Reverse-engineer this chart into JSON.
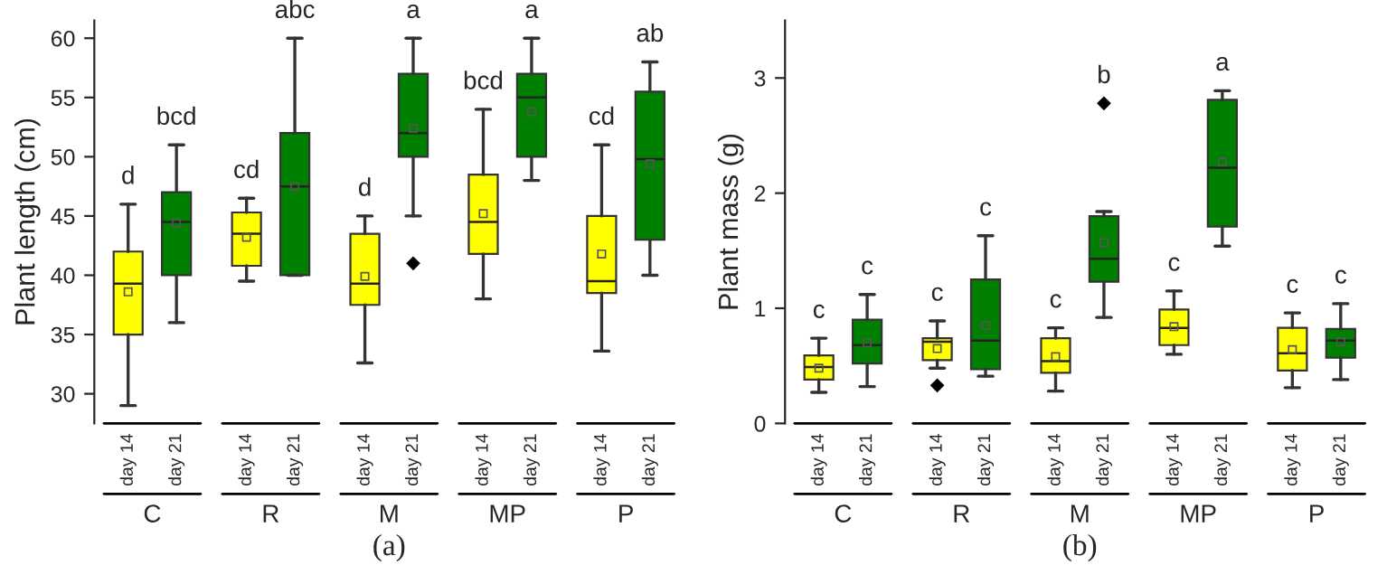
{
  "chart_data": [
    {
      "type": "box",
      "ylabel": "Plant length (cm)",
      "categories": [
        "day 14",
        "day 21",
        "day 14",
        "day 21",
        "day 14",
        "day 21",
        "day 14",
        "day 21",
        "day 14",
        "day 21"
      ],
      "colors": [
        "#ffff00",
        "#008000",
        "#ffff00",
        "#008000",
        "#ffff00",
        "#008000",
        "#ffff00",
        "#008000",
        "#ffff00",
        "#008000"
      ],
      "boxes": [
        {
          "low": 29.0,
          "q1": 35.0,
          "median": 39.3,
          "q3": 42.0,
          "high": 46.0,
          "mean": 38.6
        },
        {
          "low": 36.0,
          "q1": 40.0,
          "median": 44.5,
          "q3": 47.0,
          "high": 51.0,
          "mean": 44.4
        },
        {
          "low": 39.5,
          "q1": 40.8,
          "median": 43.5,
          "q3": 45.3,
          "high": 46.5,
          "mean": 43.2
        },
        {
          "low": 40.0,
          "q1": 40.0,
          "median": 47.5,
          "q3": 52.0,
          "high": 60.0,
          "mean": 47.5
        },
        {
          "low": 32.6,
          "q1": 37.5,
          "median": 39.3,
          "q3": 43.5,
          "high": 45.0,
          "mean": 39.9
        },
        {
          "low": 45.0,
          "q1": 50.0,
          "median": 52.0,
          "q3": 57.0,
          "high": 60.0,
          "mean": 52.4,
          "outliers": [
            41.0
          ]
        },
        {
          "low": 38.0,
          "q1": 41.8,
          "median": 44.5,
          "q3": 48.5,
          "high": 54.0,
          "mean": 45.2
        },
        {
          "low": 48.0,
          "q1": 50.0,
          "median": 55.0,
          "q3": 57.0,
          "high": 60.0,
          "mean": 53.8
        },
        {
          "low": 33.6,
          "q1": 38.5,
          "median": 39.5,
          "q3": 45.0,
          "high": 51.0,
          "mean": 41.8
        },
        {
          "low": 40.0,
          "q1": 43.0,
          "median": 49.8,
          "q3": 55.5,
          "high": 58.0,
          "mean": 49.4
        }
      ],
      "ylim": [
        27.5,
        61.5
      ],
      "yticks": [
        30,
        35,
        40,
        45,
        50,
        55,
        60
      ],
      "annotations": [
        "d",
        "bcd",
        "cd",
        "abc",
        "d",
        "a",
        "bcd",
        "a",
        "cd",
        "ab",
        "C",
        "R",
        "M",
        "MP",
        "P",
        "(a)"
      ]
    },
    {
      "type": "box",
      "ylabel": "Plant mass (g)",
      "categories": [
        "day 14",
        "day 21",
        "day 14",
        "day 21",
        "day 14",
        "day 21",
        "day 14",
        "day 21",
        "day 14",
        "day 21"
      ],
      "colors": [
        "#ffff00",
        "#008000",
        "#ffff00",
        "#008000",
        "#ffff00",
        "#008000",
        "#ffff00",
        "#008000",
        "#ffff00",
        "#008000"
      ],
      "boxes": [
        {
          "low": 0.27,
          "q1": 0.38,
          "median": 0.49,
          "q3": 0.59,
          "high": 0.74,
          "mean": 0.48
        },
        {
          "low": 0.32,
          "q1": 0.52,
          "median": 0.68,
          "q3": 0.9,
          "high": 1.12,
          "mean": 0.7
        },
        {
          "low": 0.48,
          "q1": 0.55,
          "median": 0.71,
          "q3": 0.74,
          "high": 0.89,
          "mean": 0.65,
          "outliers": [
            0.33
          ]
        },
        {
          "low": 0.41,
          "q1": 0.47,
          "median": 0.72,
          "q3": 1.25,
          "high": 1.63,
          "mean": 0.85
        },
        {
          "low": 0.28,
          "q1": 0.44,
          "median": 0.54,
          "q3": 0.74,
          "high": 0.83,
          "mean": 0.58
        },
        {
          "low": 0.92,
          "q1": 1.23,
          "median": 1.43,
          "q3": 1.8,
          "high": 1.84,
          "mean": 1.57,
          "outliers": [
            2.78
          ]
        },
        {
          "low": 0.6,
          "q1": 0.68,
          "median": 0.83,
          "q3": 0.99,
          "high": 1.15,
          "mean": 0.84
        },
        {
          "low": 1.54,
          "q1": 1.71,
          "median": 2.22,
          "q3": 2.81,
          "high": 2.89,
          "mean": 2.27
        },
        {
          "low": 0.31,
          "q1": 0.46,
          "median": 0.61,
          "q3": 0.83,
          "high": 0.96,
          "mean": 0.64
        },
        {
          "low": 0.38,
          "q1": 0.57,
          "median": 0.72,
          "q3": 0.82,
          "high": 1.04,
          "mean": 0.71
        }
      ],
      "ylim": [
        0,
        3.5
      ],
      "yticks": [
        0,
        1,
        2,
        3
      ],
      "annotations": [
        "c",
        "c",
        "c",
        "c",
        "c",
        "b",
        "c",
        "a",
        "c",
        "c",
        "C",
        "R",
        "M",
        "MP",
        "P",
        "(b)"
      ]
    }
  ]
}
